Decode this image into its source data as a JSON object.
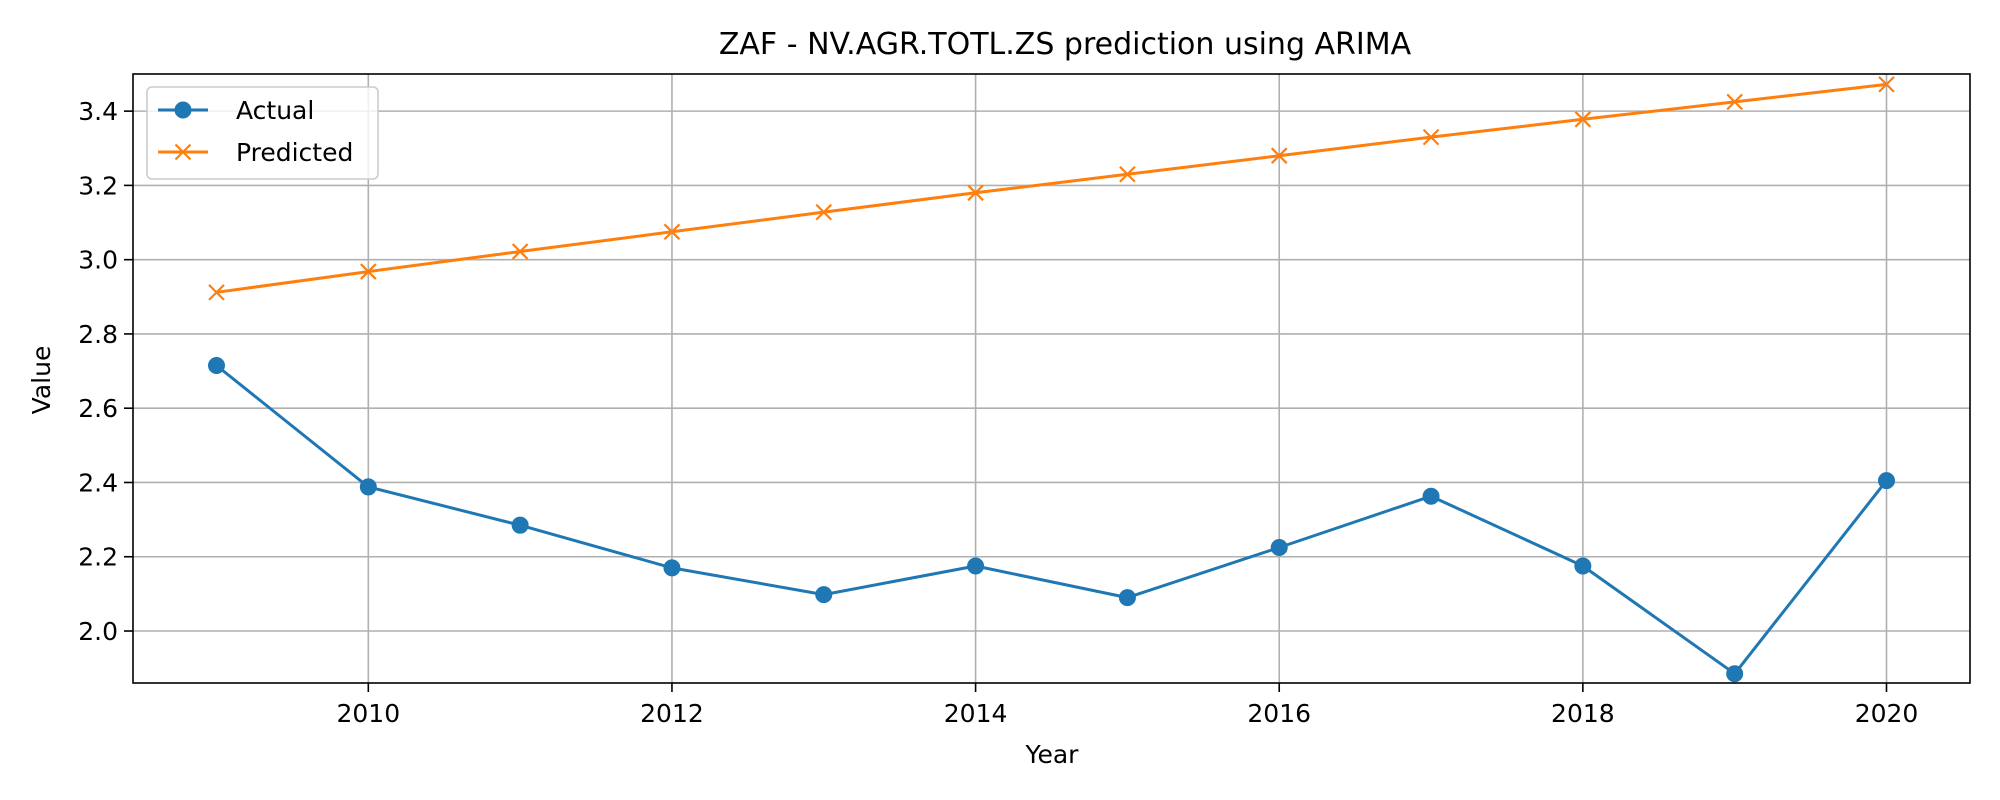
{
  "chart_data": {
    "type": "line",
    "title": "ZAF - NV.AGR.TOTL.ZS prediction using ARIMA",
    "xlabel": "Year",
    "ylabel": "Value",
    "x": [
      2009,
      2010,
      2011,
      2012,
      2013,
      2014,
      2015,
      2016,
      2017,
      2018,
      2019,
      2020
    ],
    "xlim": [
      2008.45,
      2020.55
    ],
    "ylim": [
      1.86,
      3.5
    ],
    "xticks": [
      2010,
      2012,
      2014,
      2016,
      2018,
      2020
    ],
    "xtick_labels": [
      "2010",
      "2012",
      "2014",
      "2016",
      "2018",
      "2020"
    ],
    "yticks": [
      2.0,
      2.2,
      2.4,
      2.6,
      2.8,
      3.0,
      3.2,
      3.4
    ],
    "ytick_labels": [
      "2.0",
      "2.2",
      "2.4",
      "2.6",
      "2.8",
      "3.0",
      "3.2",
      "3.4"
    ],
    "grid": true,
    "legend_position": "top-left",
    "series": [
      {
        "name": "Actual",
        "color": "#1f77b4",
        "marker": "circle",
        "values": [
          2.715,
          2.388,
          2.285,
          2.17,
          2.098,
          2.175,
          2.09,
          2.225,
          2.363,
          2.175,
          1.885,
          2.405
        ]
      },
      {
        "name": "Predicted",
        "color": "#ff7f0e",
        "marker": "x",
        "values": [
          2.912,
          2.968,
          3.022,
          3.075,
          3.128,
          3.18,
          3.23,
          3.28,
          3.33,
          3.378,
          3.425,
          3.472
        ]
      }
    ]
  }
}
